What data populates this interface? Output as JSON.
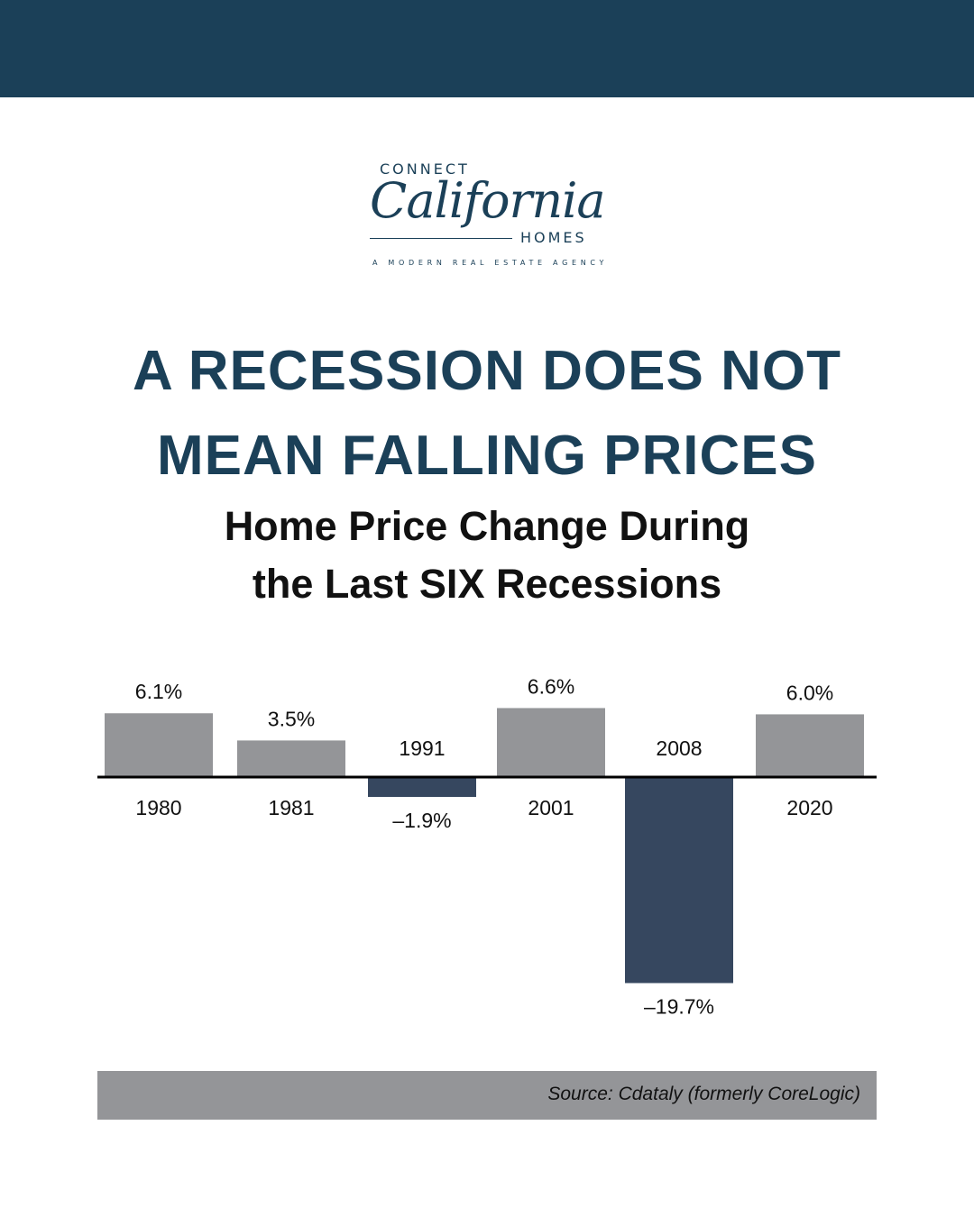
{
  "brand": {
    "line1": "CONNECT",
    "script": "California",
    "line2": "HOMES",
    "tagline": "A MODERN REAL ESTATE AGENCY"
  },
  "headline": {
    "line1": "A RECESSION DOES NOT",
    "line2": "MEAN FALLING PRICES"
  },
  "subtitle": {
    "line1": "Home Price Change During",
    "line2": "the Last SIX Recessions"
  },
  "colors": {
    "band": "#1b4058",
    "positive": "#949598",
    "negative": "#36475f",
    "axis": "#000000"
  },
  "chart_data": {
    "type": "bar",
    "title": "Home Price Change During the Last SIX Recessions",
    "xlabel": "",
    "ylabel": "",
    "grid": false,
    "ylim": [
      -20,
      7
    ],
    "categories": [
      "1980",
      "1981",
      "1991",
      "2001",
      "2008",
      "2020"
    ],
    "values": [
      6.1,
      3.5,
      -1.9,
      6.6,
      -19.7,
      6.0
    ],
    "value_labels": [
      "6.1%",
      "3.5%",
      "–1.9%",
      "6.6%",
      "–19.7%",
      "6.0%"
    ]
  },
  "source": "Source: Cdataly (formerly CoreLogic)"
}
